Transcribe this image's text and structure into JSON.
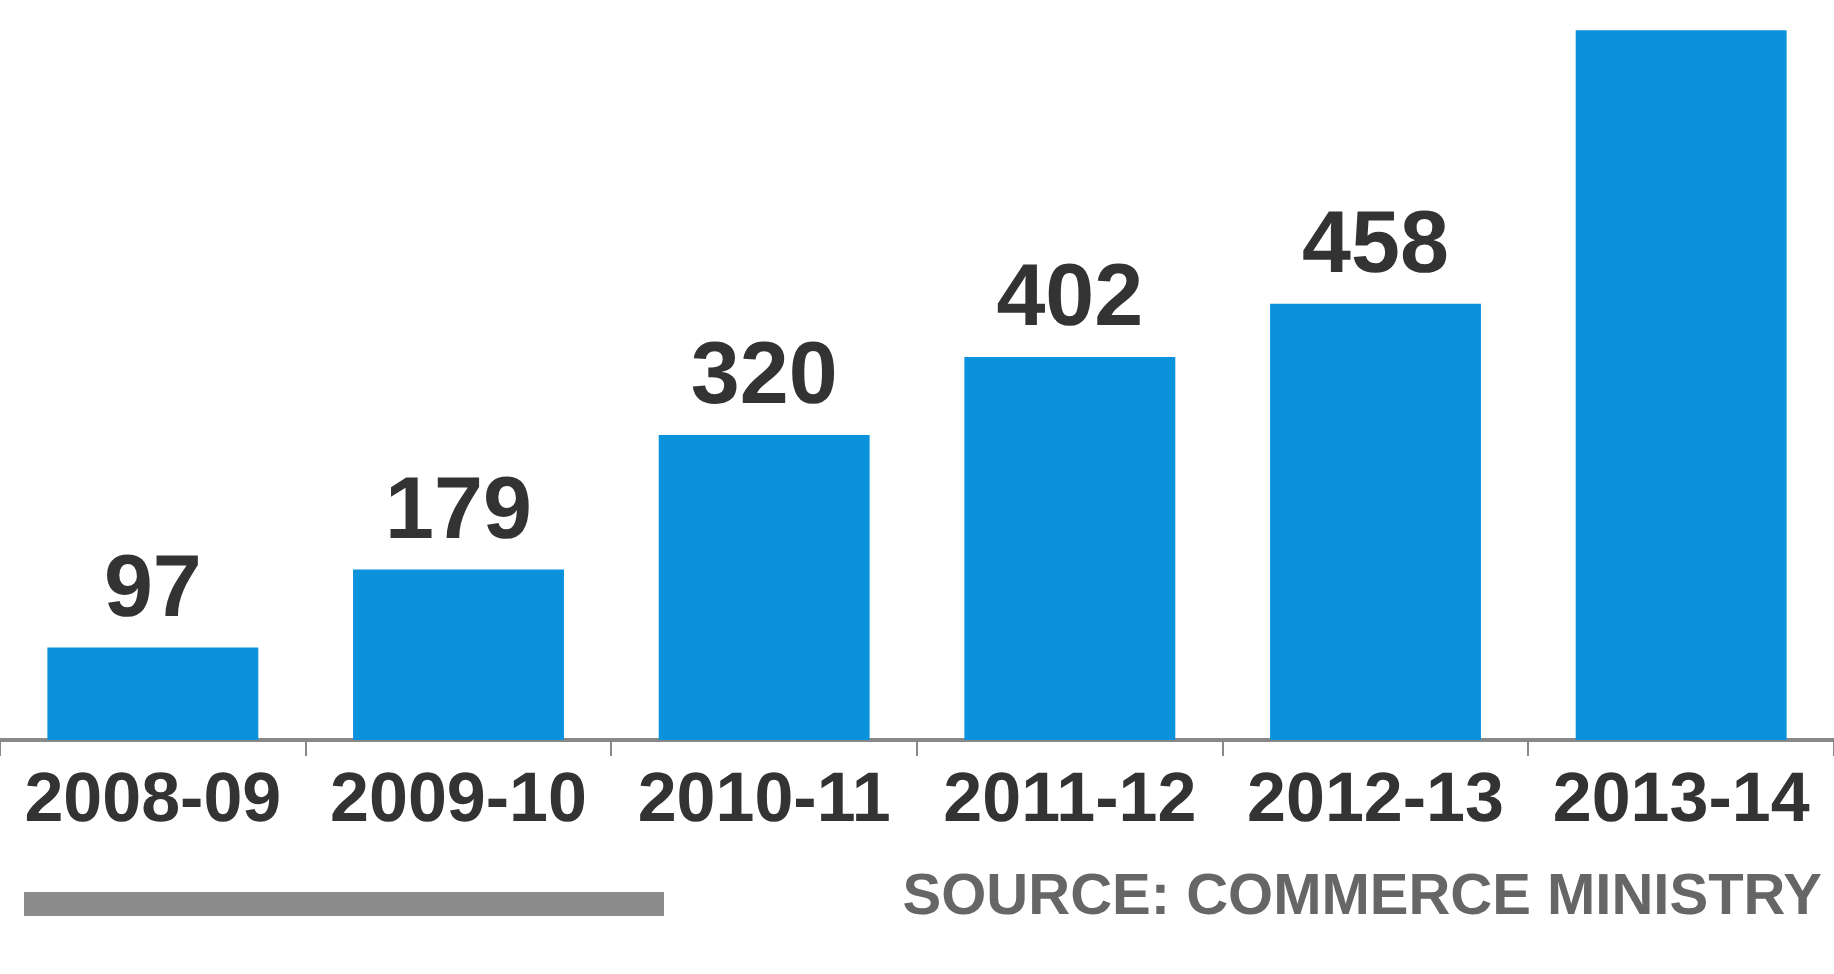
{
  "chart_data": {
    "type": "bar",
    "categories": [
      "2008-09",
      "2009-10",
      "2010-11",
      "2011-12",
      "2012-13",
      "2013-14"
    ],
    "values": [
      97,
      179,
      320,
      402,
      458,
      745
    ],
    "value_labels": [
      "97",
      "179",
      "320",
      "402",
      "458",
      null
    ],
    "color": "#0a93dc",
    "grid": false,
    "legend": false,
    "tick_labels": "x",
    "annotations": [
      "SOURCE: COMMERCE MINISTRY"
    ]
  }
}
